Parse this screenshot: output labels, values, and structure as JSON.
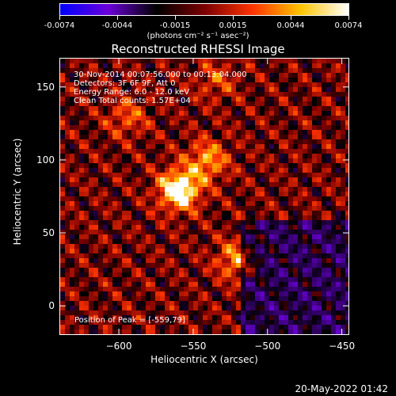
{
  "colorbar": {
    "ticks": [
      "-0.0074",
      "-0.0044",
      "-0.0015",
      "0.0015",
      "0.0044",
      "0.0074"
    ],
    "unit_label": "(photons cm⁻² s⁻¹ asec⁻²)",
    "colors": [
      "#0000ff",
      "#6b00d9",
      "#000000",
      "#7a0000",
      "#ff3300",
      "#ffc400",
      "#ffffff"
    ]
  },
  "chart_data": {
    "type": "heatmap",
    "title": "Reconstructed RHESSI Image",
    "xlabel": "Heliocentric X (arcsec)",
    "ylabel": "Heliocentric Y (arcsec)",
    "xlim": [
      -640,
      -445
    ],
    "ylim": [
      -20,
      170
    ],
    "xticks": [
      -600,
      -550,
      -500,
      -450
    ],
    "yticks": [
      0,
      50,
      100,
      150
    ],
    "peak": [
      -559,
      79
    ],
    "sources": [
      {
        "x": -560,
        "y": 80,
        "intensity": 1.0
      },
      {
        "x": -541,
        "y": 100,
        "intensity": 0.55
      },
      {
        "x": -522,
        "y": 32,
        "intensity": 0.5
      },
      {
        "x": -595,
        "y": 130,
        "intensity": 0.35
      },
      {
        "x": -535,
        "y": 155,
        "intensity": 0.3
      }
    ],
    "info_lines": [
      "30-Nov-2014 00:07:56.000 to 00:13:04.000",
      "Detectors: 3F 6F 9F, Att 0",
      "Energy Range: 6.0 - 12.0 keV",
      "Clean     Total counts: 1.57E+04"
    ],
    "peak_text": "Position of Peak = [-559,79]"
  },
  "timestamp": "20-May-2022 01:42"
}
